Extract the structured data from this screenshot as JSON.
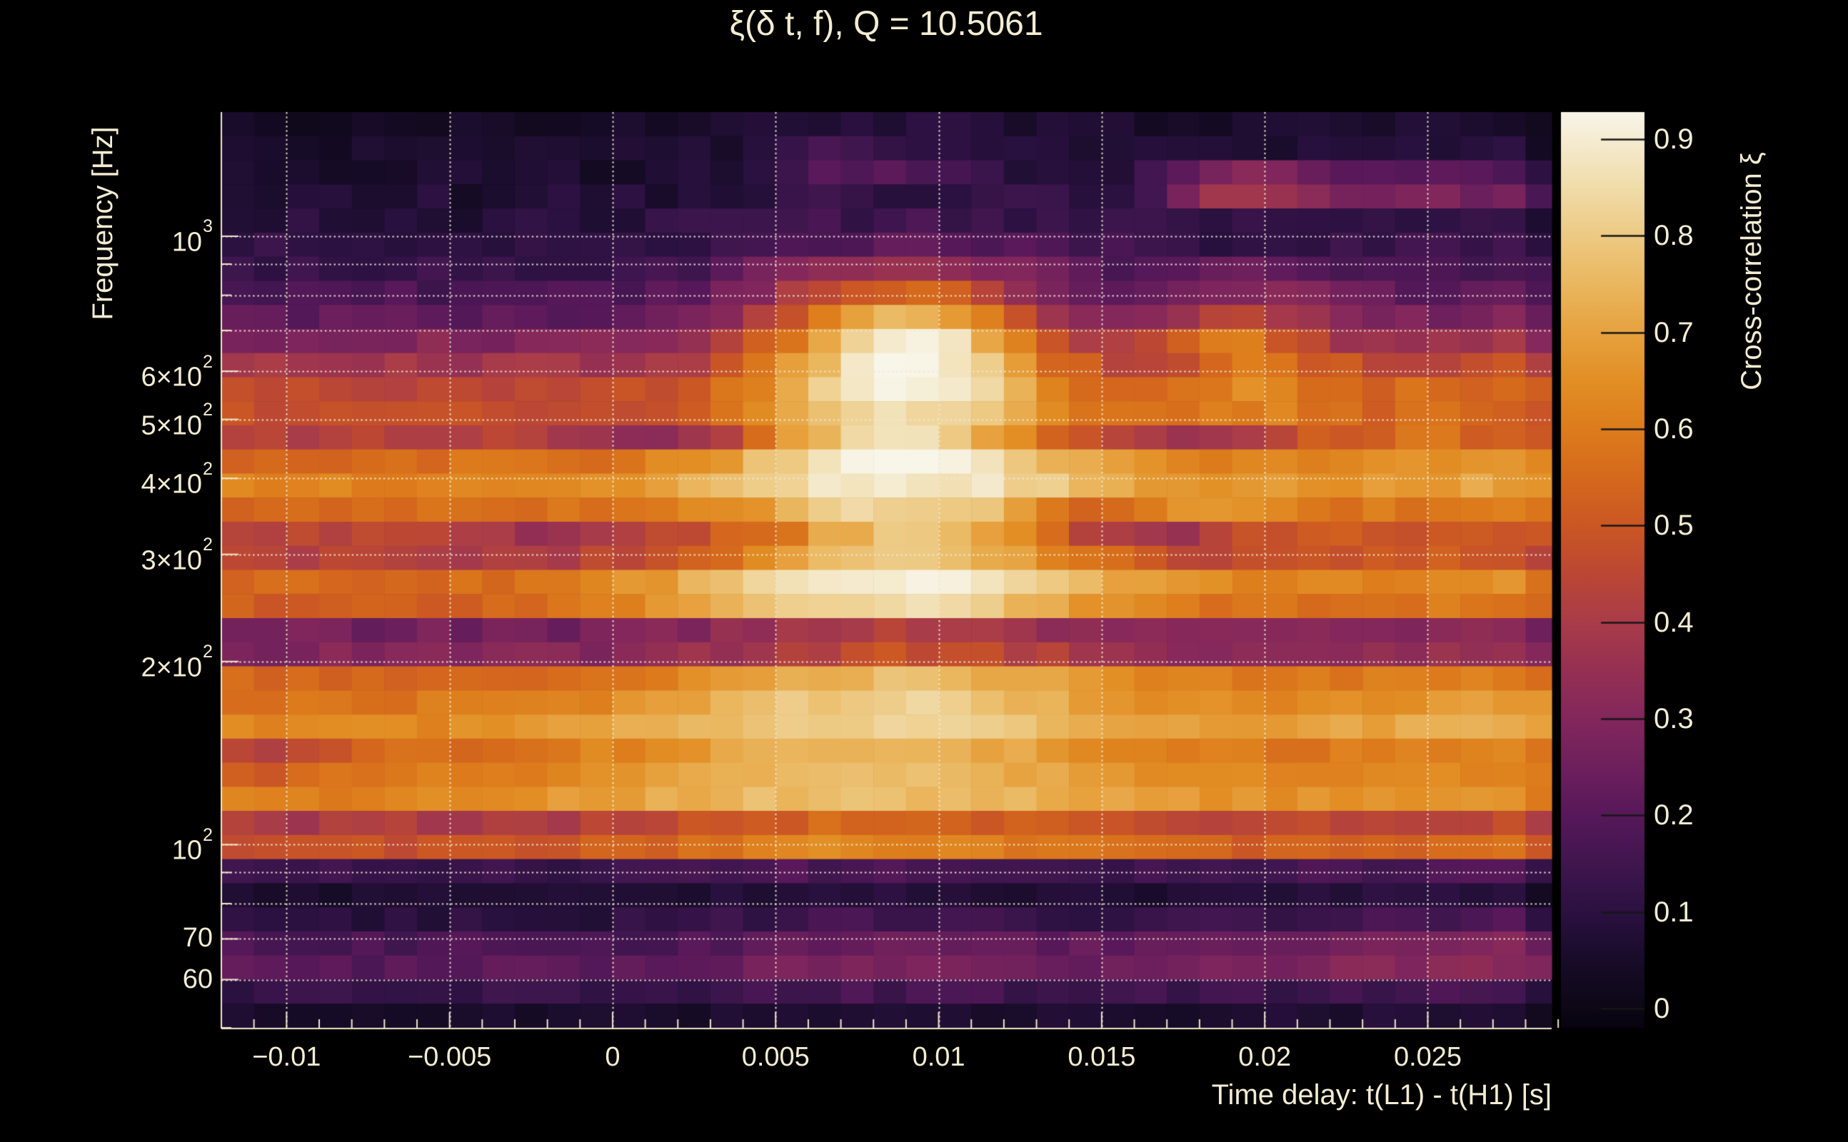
{
  "title": "ξ(δ t, f), Q = 10.5061",
  "colors": {
    "background": "#000000",
    "text": "#f3ecd2",
    "axis_line": "#efe8cc",
    "gridline": "#f0e9d2",
    "colorbar_tick": "#161616"
  },
  "axes": {
    "x": {
      "title": "Time delay: t(L1) - t(H1) [s]",
      "min": -0.012,
      "max": 0.0288,
      "minor_step": 0.001,
      "ticks": [
        {
          "v": -0.01,
          "label": "−0.01"
        },
        {
          "v": -0.005,
          "label": "−0.005"
        },
        {
          "v": 0,
          "label": "0"
        },
        {
          "v": 0.005,
          "label": "0.005"
        },
        {
          "v": 0.01,
          "label": "0.01"
        },
        {
          "v": 0.015,
          "label": "0.015"
        },
        {
          "v": 0.02,
          "label": "0.02"
        },
        {
          "v": 0.025,
          "label": "0.025"
        }
      ]
    },
    "y": {
      "title": "Frequency [Hz]",
      "min": 50,
      "max": 1600,
      "scale": "log",
      "ticks": [
        {
          "v": 1000,
          "label": "10",
          "sup": "3"
        },
        {
          "v": 600,
          "label": "6×10",
          "sup": "2"
        },
        {
          "v": 500,
          "label": "5×10",
          "sup": "2"
        },
        {
          "v": 400,
          "label": "4×10",
          "sup": "2"
        },
        {
          "v": 300,
          "label": "3×10",
          "sup": "2"
        },
        {
          "v": 200,
          "label": "2×10",
          "sup": "2"
        },
        {
          "v": 100,
          "label": "10",
          "sup": "2"
        },
        {
          "v": 70,
          "label": "70"
        },
        {
          "v": 60,
          "label": "60"
        }
      ],
      "gridlines": [
        1000,
        900,
        800,
        700,
        600,
        500,
        400,
        300,
        200,
        100,
        90,
        80,
        70,
        60
      ],
      "minor_ticks": [
        900,
        800,
        700,
        90,
        80,
        50
      ]
    },
    "z": {
      "title": "Cross-correlation ξ",
      "min": -0.02,
      "max": 0.928,
      "ticks": [
        {
          "v": 0.9,
          "label": "0.9"
        },
        {
          "v": 0.8,
          "label": "0.8"
        },
        {
          "v": 0.7,
          "label": "0.7"
        },
        {
          "v": 0.6,
          "label": "0.6"
        },
        {
          "v": 0.5,
          "label": "0.5"
        },
        {
          "v": 0.4,
          "label": "0.4"
        },
        {
          "v": 0.3,
          "label": "0.3"
        },
        {
          "v": 0.2,
          "label": "0.2"
        },
        {
          "v": 0.1,
          "label": "0.1"
        },
        {
          "v": 0,
          "label": "0"
        }
      ]
    }
  },
  "chart_data": {
    "type": "heatmap",
    "Q": 10.5061,
    "note": "Cross-correlation ξ vs time delay (1 ms bins) and frequency (log, geometric rows). Cell values estimated from rendered colors; row profiles = base + Gaussian bumps [amp, t0_ms, width_ms].",
    "x_bins": {
      "start_s": -0.012,
      "step_s": 0.001,
      "count": 41
    },
    "peak": {
      "value": 0.93,
      "time_s": 0.009,
      "frequency_hz": 620
    },
    "colormap": [
      [
        -0.02,
        "#070310"
      ],
      [
        0,
        "#0d0716"
      ],
      [
        0.05,
        "#180c29"
      ],
      [
        0.1,
        "#2b1141"
      ],
      [
        0.15,
        "#40164f"
      ],
      [
        0.2,
        "#57185a"
      ],
      [
        0.25,
        "#6e205c"
      ],
      [
        0.3,
        "#83275c"
      ],
      [
        0.35,
        "#953052"
      ],
      [
        0.4,
        "#a93c49"
      ],
      [
        0.45,
        "#bb4734"
      ],
      [
        0.5,
        "#cb5724"
      ],
      [
        0.55,
        "#d5691c"
      ],
      [
        0.6,
        "#dd7c1c"
      ],
      [
        0.65,
        "#e28f25"
      ],
      [
        0.7,
        "#e7a23f"
      ],
      [
        0.75,
        "#eab75f"
      ],
      [
        0.8,
        "#edca84"
      ],
      [
        0.85,
        "#f1dcaa"
      ],
      [
        0.9,
        "#f5ecd2"
      ],
      [
        0.93,
        "#f8f5e9"
      ]
    ],
    "rows": [
      {
        "f": 1529,
        "base": 0.035,
        "main": [
          0.05,
          9,
          4
        ],
        "right": [
          0.03,
          30,
          8
        ],
        "noise": 0.025
      },
      {
        "f": 1396,
        "base": 0.05,
        "main": [
          0.1,
          7.5,
          2.5
        ],
        "right": [
          0.04,
          30,
          8
        ],
        "noise": 0.03
      },
      {
        "f": 1274,
        "base": 0.06,
        "main": [
          0.14,
          8,
          2.5
        ],
        "sec": [
          0.22,
          19.5,
          2.0
        ],
        "right": [
          0.14,
          25.5,
          2.6
        ],
        "noise": 0.03
      },
      {
        "f": 1163,
        "base": 0.07,
        "main": [
          0.05,
          9,
          5
        ],
        "sec": [
          0.3,
          19.5,
          2.0
        ],
        "right": [
          0.22,
          25.5,
          2.8
        ],
        "noise": 0.035
      },
      {
        "f": 1062,
        "base": 0.085,
        "main": [
          0.06,
          9,
          5
        ],
        "right": [
          0.03,
          30,
          8
        ],
        "noise": 0.035
      },
      {
        "f": 969,
        "base": 0.105,
        "main": [
          0.1,
          9,
          4
        ],
        "right": [
          0.03,
          30,
          8
        ],
        "noise": 0.035
      },
      {
        "f": 884,
        "base": 0.135,
        "main": [
          0.22,
          8.8,
          3.5
        ],
        "sec": [
          0.06,
          19.5,
          1.8
        ],
        "right": [
          0.05,
          30,
          8
        ],
        "noise": 0.035
      },
      {
        "f": 807,
        "base": 0.17,
        "main": [
          0.38,
          8.8,
          3.2
        ],
        "sec": [
          0.12,
          19.5,
          1.8
        ],
        "right": [
          0.06,
          30,
          8
        ],
        "noise": 0.035
      },
      {
        "f": 737,
        "base": 0.22,
        "main": [
          0.56,
          8.9,
          3.0
        ],
        "sec": [
          0.2,
          19,
          1.8
        ],
        "right": [
          0.07,
          30,
          8
        ],
        "noise": 0.035
      },
      {
        "f": 673,
        "base": 0.3,
        "main": [
          0.63,
          9.0,
          2.9
        ],
        "sec": [
          0.25,
          19,
          1.8
        ],
        "right": [
          0.08,
          30,
          8
        ],
        "noise": 0.035
      },
      {
        "f": 614,
        "base": 0.38,
        "main": [
          0.55,
          9.0,
          3.0
        ],
        "sec": [
          0.15,
          19.5,
          1.8
        ],
        "right": [
          0.1,
          30,
          8
        ],
        "noise": 0.035
      },
      {
        "f": 560,
        "base": 0.45,
        "main": [
          0.48,
          9.0,
          3.2
        ],
        "sec": [
          0.12,
          19.5,
          1.8
        ],
        "right": [
          0.12,
          30,
          8
        ],
        "noise": 0.035
      },
      {
        "f": 512,
        "base": 0.48,
        "main": [
          0.38,
          8.8,
          3.4
        ],
        "sec": [
          0.1,
          19.5,
          1.8
        ],
        "right": [
          0.08,
          30,
          8
        ],
        "dips": [
          [
            -0.06,
            1.0,
            2.0
          ]
        ],
        "noise": 0.035
      },
      {
        "f": 467,
        "base": 0.42,
        "main": [
          0.44,
          8.8,
          3.2
        ],
        "right": [
          0.14,
          25,
          4
        ],
        "dips": [
          [
            -0.12,
            1.5,
            2.2
          ],
          [
            -0.1,
            17.5,
            2.0
          ]
        ],
        "noise": 0.04
      },
      {
        "f": 426,
        "base": 0.56,
        "main": [
          0.36,
          9.0,
          4.0
        ],
        "right": [
          0.12,
          30,
          7
        ],
        "noise": 0.035
      },
      {
        "f": 389,
        "base": 0.62,
        "main": [
          0.28,
          9.0,
          4.5
        ],
        "right": [
          0.09,
          30,
          7
        ],
        "noise": 0.03
      },
      {
        "f": 355,
        "base": 0.55,
        "main": [
          0.28,
          9.0,
          3.5
        ],
        "sec": [
          0.14,
          18,
          1.6
        ],
        "right": [
          0.05,
          30,
          8
        ],
        "dips": [
          [
            -0.14,
            14.8,
            1.4
          ]
        ],
        "noise": 0.04
      },
      {
        "f": 324,
        "base": 0.46,
        "main": [
          0.32,
          9.0,
          3.0
        ],
        "right": [
          0.05,
          30,
          8
        ],
        "dips": [
          [
            -0.12,
            16,
            1.8
          ],
          [
            -0.08,
            -2,
            2.0
          ]
        ],
        "noise": 0.045
      },
      {
        "f": 296,
        "base": 0.42,
        "main": [
          0.4,
          9.0,
          3.8
        ],
        "right": [
          0.1,
          30,
          8
        ],
        "noise": 0.04
      },
      {
        "f": 270,
        "base": 0.55,
        "main": [
          0.37,
          8.5,
          5.0
        ],
        "right": [
          0.1,
          30,
          8
        ],
        "noise": 0.03
      },
      {
        "f": 247,
        "base": 0.52,
        "main": [
          0.33,
          8.0,
          5.0
        ],
        "right": [
          0.08,
          30,
          8
        ],
        "noise": 0.03
      },
      {
        "f": 225,
        "base": 0.26,
        "main": [
          0.16,
          9,
          4.0
        ],
        "right": [
          0.06,
          30,
          8
        ],
        "noise": 0.035
      },
      {
        "f": 206,
        "base": 0.29,
        "main": [
          0.18,
          9,
          4.5
        ],
        "right": [
          0.08,
          30,
          8
        ],
        "noise": 0.035
      },
      {
        "f": 187,
        "base": 0.54,
        "main": [
          0.22,
          8.5,
          5.0
        ],
        "right": [
          0.08,
          30,
          8
        ],
        "noise": 0.03
      },
      {
        "f": 171,
        "base": 0.58,
        "main": [
          0.24,
          8.5,
          5.0
        ],
        "right": [
          0.12,
          30,
          7
        ],
        "noise": 0.03
      },
      {
        "f": 156,
        "base": 0.62,
        "main": [
          0.2,
          8.0,
          6.0
        ],
        "right": [
          0.12,
          30,
          7
        ],
        "noise": 0.025
      },
      {
        "f": 143,
        "base": 0.55,
        "main": [
          0.2,
          8.0,
          5.5
        ],
        "right": [
          0.06,
          30,
          8
        ],
        "dips": [
          [
            -0.12,
            -10.5,
            1.8
          ]
        ],
        "noise": 0.03
      },
      {
        "f": 130,
        "base": 0.58,
        "main": [
          0.18,
          8.0,
          6.0
        ],
        "right": [
          0.05,
          30,
          8
        ],
        "dips": [
          [
            -0.08,
            -11,
            1.5
          ]
        ],
        "noise": 0.025
      },
      {
        "f": 119,
        "base": 0.6,
        "main": [
          0.17,
          7.5,
          7.0
        ],
        "right": [
          0.05,
          30,
          8
        ],
        "noise": 0.025
      },
      {
        "f": 108,
        "base": 0.4,
        "main": [
          0.14,
          8,
          5.0
        ],
        "right": [
          0.06,
          30,
          8
        ],
        "noise": 0.035
      },
      {
        "f": 99,
        "base": 0.48,
        "main": [
          0.15,
          8,
          5.0
        ],
        "right": [
          0.08,
          30,
          8
        ],
        "noise": 0.03
      },
      {
        "f": 90,
        "base": 0.13,
        "main": [
          0.05,
          8,
          4
        ],
        "right": [
          0.05,
          30,
          8
        ],
        "noise": 0.03
      },
      {
        "f": 82,
        "base": 0.06,
        "main": [
          0.03,
          8,
          4
        ],
        "right": [
          0.04,
          30,
          8
        ],
        "noise": 0.02
      },
      {
        "f": 75,
        "base": 0.1,
        "main": [
          0.05,
          8,
          4
        ],
        "right": [
          0.08,
          30,
          8
        ],
        "noise": 0.03
      },
      {
        "f": 69,
        "base": 0.17,
        "main": [
          0.06,
          8,
          4
        ],
        "right": [
          0.14,
          30,
          9
        ],
        "noise": 0.03
      },
      {
        "f": 63,
        "base": 0.2,
        "main": [
          0.08,
          8,
          4
        ],
        "right": [
          0.13,
          30,
          9
        ],
        "noise": 0.03
      },
      {
        "f": 57,
        "base": 0.12,
        "main": [
          0.04,
          8,
          4
        ],
        "right": [
          0.04,
          30,
          8
        ],
        "noise": 0.03
      },
      {
        "f": 52,
        "base": 0.05,
        "main": [
          0.02,
          8,
          4
        ],
        "right": [
          0.03,
          30,
          8
        ],
        "noise": 0.02
      }
    ]
  }
}
